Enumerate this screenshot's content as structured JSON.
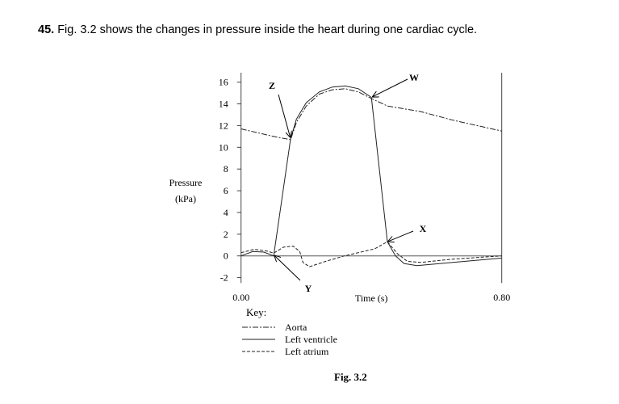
{
  "question": {
    "number": "45.",
    "text": "Fig. 3.2 shows the changes in pressure inside the heart during one cardiac cycle."
  },
  "figure_caption": "Fig. 3.2",
  "chart_data": {
    "type": "line",
    "xlabel": "Time (s)",
    "ylabel_line1": "Pressure",
    "ylabel_line2": "(kPa)",
    "xlim": [
      0,
      0.8
    ],
    "ylim": [
      -2,
      16
    ],
    "x_tick_labels": [
      "0.00",
      "0.80"
    ],
    "x_ticks": [
      0,
      0.8
    ],
    "y_ticks": [
      -2,
      0,
      2,
      4,
      6,
      8,
      10,
      12,
      14,
      16
    ],
    "grid": false,
    "key_title": "Key:",
    "series": [
      {
        "name": "Aorta",
        "style": "dash-dot",
        "points": [
          [
            0,
            11.7
          ],
          [
            0.05,
            11.35
          ],
          [
            0.1,
            11.0
          ],
          [
            0.152,
            10.7
          ],
          [
            0.17,
            12.3
          ],
          [
            0.2,
            13.8
          ],
          [
            0.24,
            14.9
          ],
          [
            0.28,
            15.3
          ],
          [
            0.32,
            15.4
          ],
          [
            0.36,
            15.1
          ],
          [
            0.4,
            14.5
          ],
          [
            0.45,
            13.8
          ],
          [
            0.55,
            13.3
          ],
          [
            0.65,
            12.5
          ],
          [
            0.8,
            11.5
          ]
        ]
      },
      {
        "name": "Left ventricle",
        "style": "solid",
        "points": [
          [
            0,
            0
          ],
          [
            0.036,
            0.4
          ],
          [
            0.07,
            0.35
          ],
          [
            0.1,
            0
          ],
          [
            0.152,
            10.8
          ],
          [
            0.17,
            12.6
          ],
          [
            0.2,
            14.1
          ],
          [
            0.24,
            15.1
          ],
          [
            0.28,
            15.55
          ],
          [
            0.32,
            15.65
          ],
          [
            0.36,
            15.4
          ],
          [
            0.4,
            14.6
          ],
          [
            0.449,
            1.3
          ],
          [
            0.474,
            0
          ],
          [
            0.5,
            -0.7
          ],
          [
            0.54,
            -0.9
          ],
          [
            0.65,
            -0.6
          ],
          [
            0.8,
            -0.2
          ]
        ]
      },
      {
        "name": "Left atrium",
        "style": "dashed",
        "points": [
          [
            0,
            0.3
          ],
          [
            0.04,
            0.6
          ],
          [
            0.08,
            0.45
          ],
          [
            0.1,
            0.25
          ],
          [
            0.13,
            0.8
          ],
          [
            0.16,
            0.9
          ],
          [
            0.18,
            0.4
          ],
          [
            0.19,
            -0.6
          ],
          [
            0.21,
            -1.0
          ],
          [
            0.26,
            -0.5
          ],
          [
            0.317,
            0
          ],
          [
            0.36,
            0.3
          ],
          [
            0.41,
            0.65
          ],
          [
            0.449,
            1.3
          ],
          [
            0.48,
            0.2
          ],
          [
            0.51,
            -0.5
          ],
          [
            0.55,
            -0.6
          ],
          [
            0.65,
            -0.3
          ],
          [
            0.8,
            0
          ]
        ]
      }
    ],
    "annotations": [
      {
        "label": "Z",
        "t": 0.152,
        "p": 10.8
      },
      {
        "label": "W",
        "t": 0.4,
        "p": 14.6
      },
      {
        "label": "X",
        "t": 0.449,
        "p": 1.3
      },
      {
        "label": "Y",
        "t": 0.1,
        "p": 0.1
      }
    ]
  }
}
